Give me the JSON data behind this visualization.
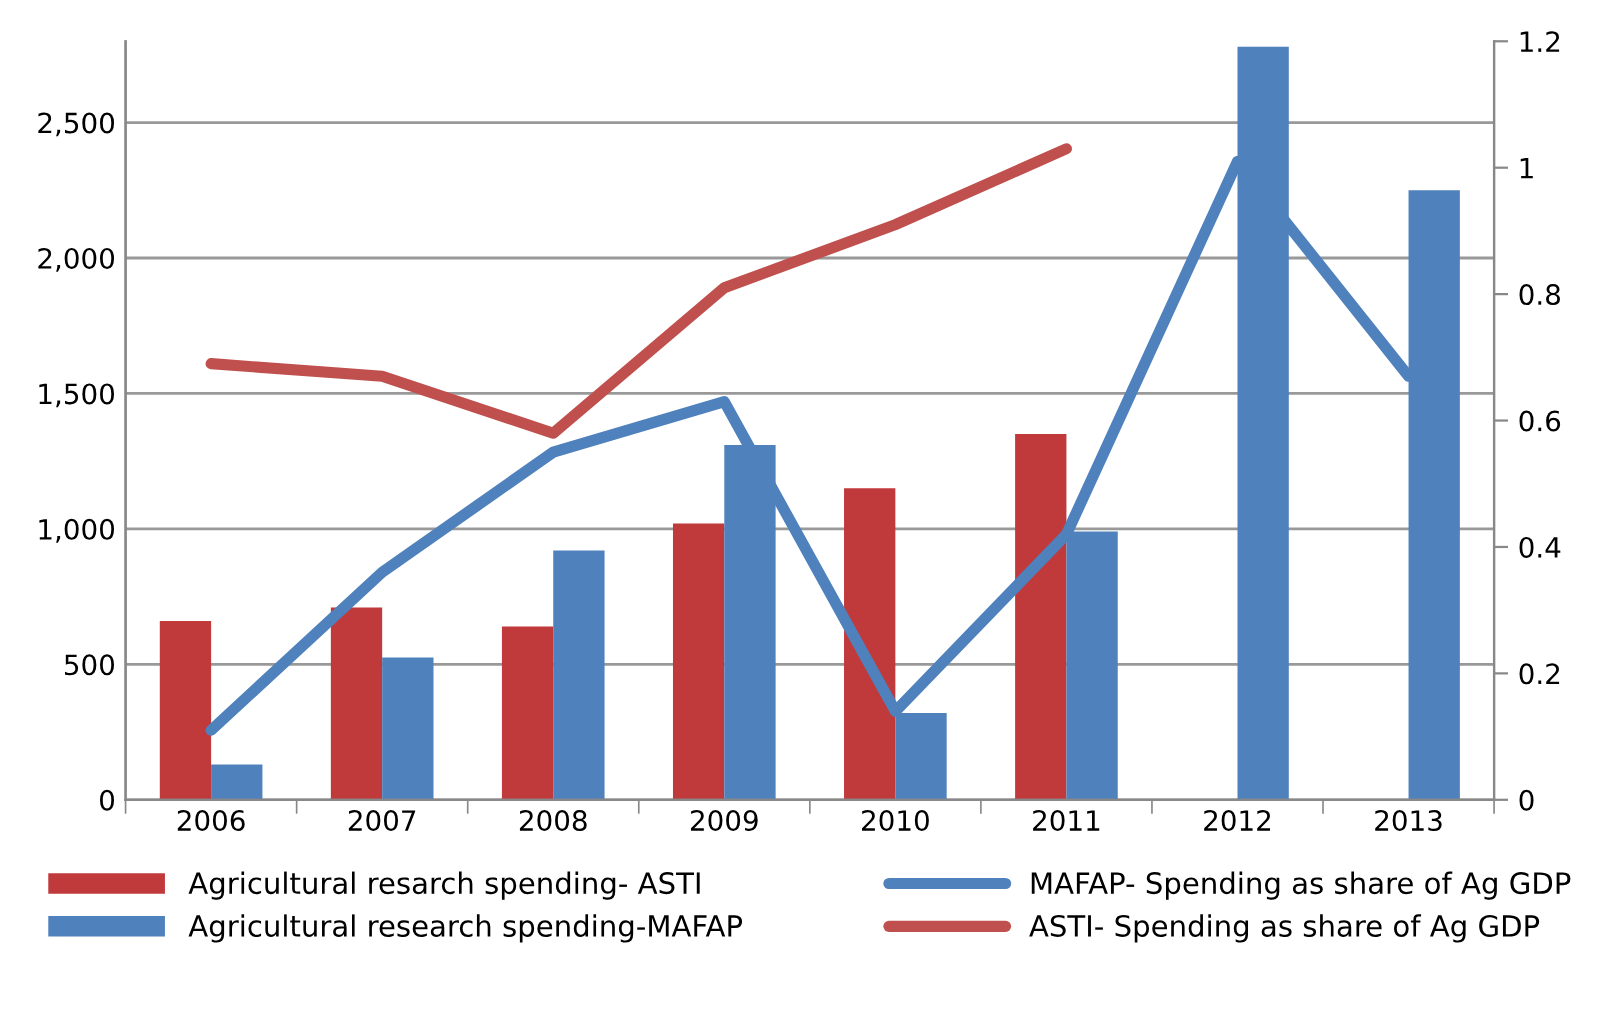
{
  "chart_data": {
    "type": "bar",
    "categories": [
      "2006",
      "2007",
      "2008",
      "2009",
      "2010",
      "2011",
      "2012",
      "2013"
    ],
    "series": [
      {
        "name": "Agricultural resarch spending- ASTI",
        "color": "#c0393b",
        "values": [
          660,
          710,
          640,
          1020,
          1150,
          1350,
          null,
          null
        ]
      },
      {
        "name": "Agricultural research spending-MAFAP",
        "color": "#4f81bd",
        "values": [
          130,
          525,
          920,
          1310,
          320,
          990,
          2780,
          2250
        ]
      },
      {
        "name": "MAFAP- Spending as share of Ag GDP",
        "type": "line",
        "axis": "y2",
        "color": "#4f81bd",
        "values": [
          0.11,
          0.36,
          0.55,
          0.63,
          0.14,
          0.42,
          1.01,
          0.67
        ]
      },
      {
        "name": "ASTI- Spending as share of Ag GDP",
        "type": "line",
        "axis": "y2",
        "color": "#c0504d",
        "values": [
          0.69,
          0.67,
          0.58,
          0.81,
          0.91,
          1.03,
          null,
          null
        ]
      }
    ],
    "ylim": [
      0,
      2800
    ],
    "yticks": [
      0,
      {
        "value": 500,
        "label": "500"
      },
      {
        "value": 1000,
        "label": "1,000"
      },
      {
        "value": 1500,
        "label": "1,500"
      },
      {
        "value": 2000,
        "label": "2,000"
      },
      {
        "value": 2500,
        "label": "2,500"
      }
    ],
    "y2lim": [
      0,
      1.2
    ],
    "y2ticks": [
      0,
      0.2,
      0.4,
      0.6,
      0.8,
      1,
      1.2
    ],
    "grid": "y",
    "legend": "bottom",
    "marker": "none",
    "line_style": "solid"
  }
}
